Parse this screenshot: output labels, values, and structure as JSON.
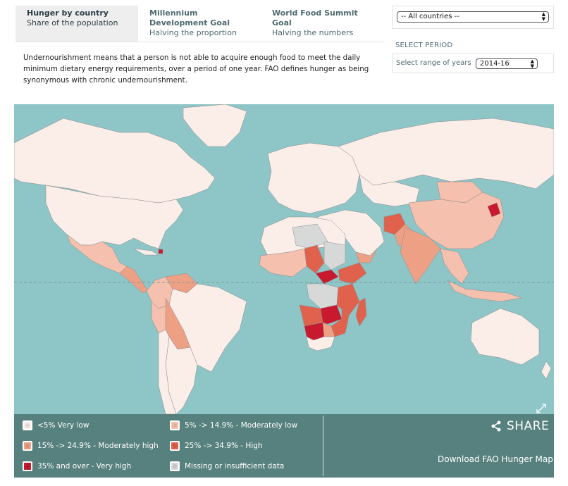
{
  "tabs": [
    {
      "title": "Hunger by country",
      "subtitle": "Share of the population"
    },
    {
      "title": "Millennium Development Goal",
      "subtitle": "Halving the proportion"
    },
    {
      "title": "World Food Summit Goal",
      "subtitle": "Halving the numbers"
    }
  ],
  "description": "Undernourishment means that a person is not able to acquire enough food to meet the daily minimum dietary energy requirements, over a period of one year. FAO defines hunger as being synonymous with chronic undernourishment.",
  "country_select": {
    "value": "-- All countries --"
  },
  "period": {
    "heading": "SELECT PERIOD",
    "label": "Select range of years",
    "value": "2014-16"
  },
  "legend": [
    {
      "label": "<5% Very low",
      "color": "#fbeee9"
    },
    {
      "label": "5% -> 14.9% - Moderately low",
      "color": "#f5c0ad"
    },
    {
      "label": "15% -> 24.9% - Moderately high",
      "color": "#eea085"
    },
    {
      "label": "25% -> 34.9% - High",
      "color": "#e0624c"
    },
    {
      "label": "35% and over - Very high",
      "color": "#c8192e"
    },
    {
      "label": "Missing or insufficient data",
      "color": "#d7d9d9"
    }
  ],
  "share_label": "SHARE",
  "download_label": "Download FAO Hunger Map",
  "colors": {
    "ocean": "#8ec5c7",
    "legend_bg": "#57817e",
    "tab_active": "#eeeeee"
  }
}
